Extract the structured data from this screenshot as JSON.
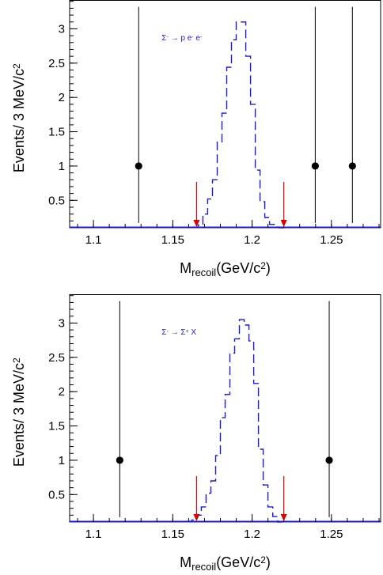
{
  "colors": {
    "histogram": "#1a1adc",
    "data": "#000000",
    "arrow": "#dd0000",
    "axis": "#000000"
  },
  "chart_data": [
    {
      "type": "line",
      "annotation": {
        "parts": [
          "Σ",
          "-",
          " → p e",
          "-",
          " e",
          "-"
        ],
        "text": "Σ- → p e- e-"
      },
      "xlabel": {
        "main": "M",
        "sub": "recoil",
        "rest": "(GeV/c",
        "sup": "2",
        "end": ")"
      },
      "ylabel": {
        "main": "Events/ 3 MeV/c",
        "sup": "2"
      },
      "xlim": [
        1.085,
        1.281
      ],
      "ylim": [
        0.1,
        3.42
      ],
      "xticks": [
        1.1,
        1.15,
        1.2,
        1.25
      ],
      "xtick_labels": [
        "1.1",
        "1.15",
        "1.2",
        "1.25"
      ],
      "yticks": [
        0.5,
        1,
        1.5,
        2,
        2.5,
        3
      ],
      "ytick_labels": [
        "0.5",
        "1",
        "1.5",
        "2",
        "2.5",
        "3"
      ],
      "histogram": {
        "edges": [
          1.163,
          1.166,
          1.169,
          1.172,
          1.175,
          1.178,
          1.181,
          1.184,
          1.187,
          1.19,
          1.193,
          1.196,
          1.199,
          1.202,
          1.205,
          1.208,
          1.211,
          1.214,
          1.217,
          1.22
        ],
        "values": [
          0.11,
          0.14,
          0.3,
          0.52,
          0.8,
          1.35,
          1.77,
          2.44,
          2.84,
          3.1,
          3.1,
          2.6,
          1.9,
          0.94,
          0.48,
          0.25,
          0.15,
          0.11,
          0.1
        ]
      },
      "data_points": [
        {
          "x": 1.1285,
          "y": 1,
          "ylow": 0.17,
          "yhigh": 3.32
        },
        {
          "x": 1.2398,
          "y": 1,
          "ylow": 0.17,
          "yhigh": 3.32
        },
        {
          "x": 1.2632,
          "y": 1,
          "ylow": 0.17,
          "yhigh": 3.32
        }
      ],
      "cut_arrows": [
        1.165,
        1.22
      ]
    },
    {
      "type": "line",
      "annotation": {
        "parts": [
          "Σ",
          "-",
          " → Σ",
          "+",
          " X",
          ""
        ],
        "text": "Σ- → Σ+ X"
      },
      "xlabel": {
        "main": "M",
        "sub": "recoil",
        "rest": "(GeV/c",
        "sup": "2",
        "end": ")"
      },
      "ylabel": {
        "main": "Events/ 3 MeV/c",
        "sup": "2"
      },
      "xlim": [
        1.085,
        1.281
      ],
      "ylim": [
        0.1,
        3.42
      ],
      "xticks": [
        1.1,
        1.15,
        1.2,
        1.25
      ],
      "xtick_labels": [
        "1.1",
        "1.15",
        "1.2",
        "1.25"
      ],
      "yticks": [
        0.5,
        1,
        1.5,
        2,
        2.5,
        3
      ],
      "ytick_labels": [
        "0.5",
        "1",
        "1.5",
        "2",
        "2.5",
        "3"
      ],
      "histogram": {
        "edges": [
          1.159,
          1.162,
          1.165,
          1.168,
          1.171,
          1.174,
          1.177,
          1.18,
          1.183,
          1.186,
          1.189,
          1.192,
          1.195,
          1.198,
          1.201,
          1.204,
          1.207,
          1.21,
          1.213,
          1.216,
          1.219
        ],
        "values": [
          0.11,
          0.13,
          0.2,
          0.32,
          0.52,
          0.7,
          1.07,
          1.62,
          1.96,
          2.56,
          2.77,
          3.05,
          2.97,
          2.74,
          2.12,
          1.16,
          0.64,
          0.32,
          0.18,
          0.1
        ]
      },
      "data_points": [
        {
          "x": 1.1166,
          "y": 1,
          "ylow": 0.17,
          "yhigh": 3.32
        },
        {
          "x": 1.2486,
          "y": 1,
          "ylow": 0.17,
          "yhigh": 3.32
        }
      ],
      "cut_arrows": [
        1.165,
        1.22
      ]
    }
  ]
}
